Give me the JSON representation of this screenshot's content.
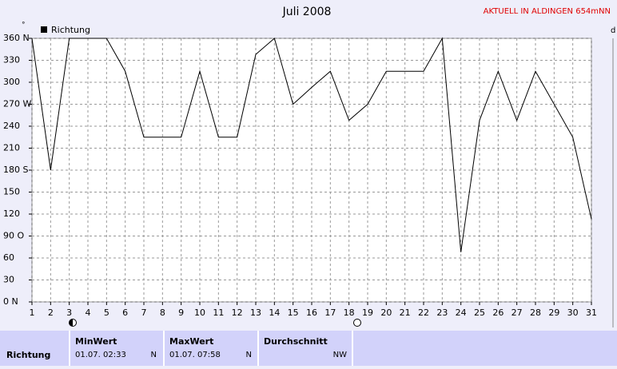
{
  "chart_data": {
    "type": "line",
    "title": "Juli 2008",
    "subtitle": "AKTUELL IN ALDINGEN 654mNN",
    "y_unit": "°",
    "y2_unit": "d",
    "x": [
      1,
      2,
      3,
      4,
      5,
      6,
      7,
      8,
      9,
      10,
      11,
      12,
      13,
      14,
      15,
      16,
      17,
      18,
      19,
      20,
      21,
      22,
      23,
      24,
      25,
      26,
      27,
      28,
      29,
      30,
      31
    ],
    "xlim": [
      1,
      31
    ],
    "xticks": [
      1,
      2,
      3,
      4,
      5,
      6,
      7,
      8,
      9,
      10,
      11,
      12,
      13,
      14,
      15,
      16,
      17,
      18,
      19,
      20,
      21,
      22,
      23,
      24,
      25,
      26,
      27,
      28,
      29,
      30,
      31
    ],
    "ylim": [
      0,
      360
    ],
    "yticks": [
      {
        "value": 0,
        "label": "0 N"
      },
      30,
      60,
      {
        "value": 90,
        "label": "90 O"
      },
      120,
      150,
      {
        "value": 180,
        "label": "180 S"
      },
      210,
      240,
      {
        "value": 270,
        "label": "270 W"
      },
      300,
      330,
      {
        "value": 360,
        "label": "360 N"
      }
    ],
    "grid": true,
    "series": [
      {
        "name": "Richtung",
        "color": "#000000",
        "values": [
          360,
          180,
          360,
          360,
          360,
          315,
          225,
          225,
          225,
          315,
          225,
          225,
          338,
          360,
          270,
          293,
          315,
          248,
          270,
          315,
          315,
          315,
          360,
          68,
          248,
          315,
          248,
          315,
          270,
          225,
          113
        ]
      }
    ]
  },
  "summary": {
    "row_label": "Richtung",
    "columns": [
      {
        "header": "MinWert",
        "date": "01.07.  02:33",
        "dir": "N"
      },
      {
        "header": "MaxWert",
        "date": "01.07.  07:58",
        "dir": "N"
      },
      {
        "header": "Durchschnitt",
        "dir": "NW"
      }
    ]
  }
}
